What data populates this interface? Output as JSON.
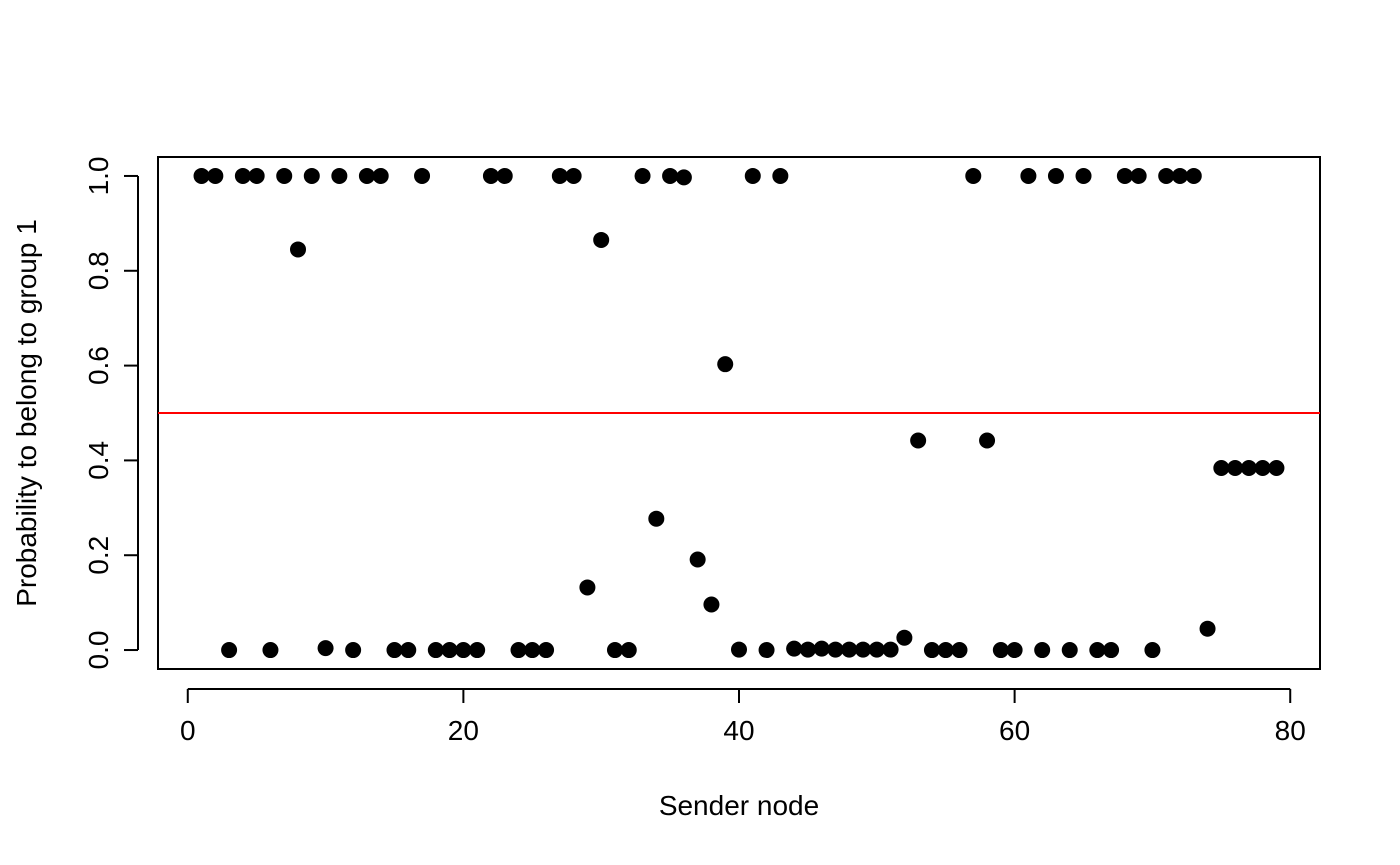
{
  "chart_data": {
    "type": "scatter",
    "xlabel": "Sender node",
    "ylabel": "Probability to belong to group 1",
    "xlim": [
      -2.16,
      82.16
    ],
    "ylim": [
      -0.04,
      1.04
    ],
    "x_ticks": [
      0,
      20,
      40,
      60,
      80
    ],
    "x_tick_labels": [
      "0",
      "20",
      "40",
      "60",
      "80"
    ],
    "y_ticks": [
      0.0,
      0.2,
      0.4,
      0.6,
      0.8,
      1.0
    ],
    "y_tick_labels": [
      "0.0",
      "0.2",
      "0.4",
      "0.6",
      "0.8",
      "1.0"
    ],
    "grid": false,
    "reference_line": {
      "y": 0.5,
      "color": "#ff0000"
    },
    "point_color": "#000000",
    "x": [
      1,
      2,
      3,
      4,
      5,
      6,
      7,
      8,
      9,
      10,
      11,
      12,
      13,
      14,
      15,
      16,
      17,
      18,
      19,
      20,
      21,
      22,
      23,
      24,
      25,
      26,
      27,
      28,
      29,
      30,
      31,
      32,
      33,
      34,
      35,
      36,
      37,
      38,
      39,
      40,
      41,
      42,
      43,
      44,
      45,
      46,
      47,
      48,
      49,
      50,
      51,
      52,
      53,
      54,
      55,
      56,
      57,
      58,
      59,
      60,
      61,
      62,
      63,
      64,
      65,
      66,
      67,
      68,
      69,
      70,
      71,
      72,
      73,
      74,
      75,
      76,
      77,
      78,
      79
    ],
    "y": [
      1.0,
      1.0,
      0.0,
      1.0,
      1.0,
      0.0,
      1.0,
      0.845,
      1.0,
      0.004,
      1.0,
      0.0,
      1.0,
      1.0,
      0.0,
      0.0,
      1.0,
      0.0,
      0.0,
      0.0,
      0.0,
      1.0,
      1.0,
      0.0,
      0.0,
      0.0,
      1.0,
      1.0,
      0.132,
      0.865,
      0.0,
      0.0,
      1.0,
      0.277,
      1.0,
      0.997,
      0.191,
      0.096,
      0.603,
      0.001,
      1.0,
      0.0,
      1.0,
      0.003,
      0.001,
      0.003,
      0.001,
      0.001,
      0.001,
      0.001,
      0.001,
      0.026,
      0.442,
      0.0,
      0.0,
      0.0,
      1.0,
      0.442,
      0.0,
      0.0,
      1.0,
      0.0,
      1.0,
      0.0,
      1.0,
      0.0,
      0.0,
      1.0,
      1.0,
      0.0,
      1.0,
      1.0,
      1.0,
      0.045,
      0.384,
      0.384,
      0.384,
      0.384,
      0.384
    ]
  }
}
